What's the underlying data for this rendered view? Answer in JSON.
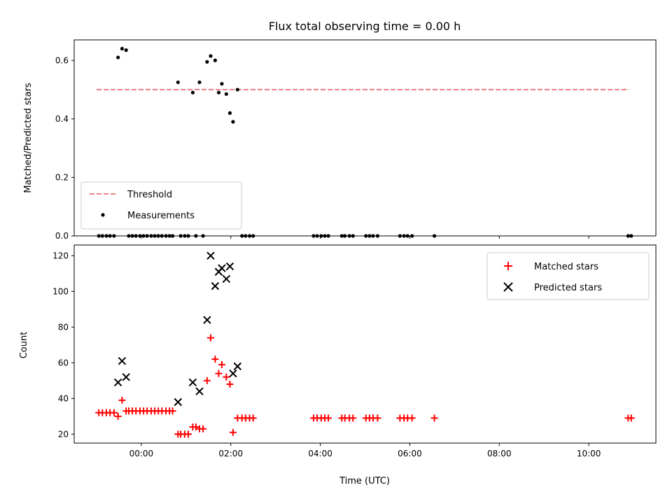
{
  "chart_data": [
    {
      "type": "scatter",
      "title": "Flux total observing time = 0.00 h",
      "xlabel": "",
      "ylabel": "Matched/Predicted stars",
      "xlim": [
        -1.5,
        11.5
      ],
      "ylim": [
        0.0,
        0.67
      ],
      "yticks": [
        0.0,
        0.2,
        0.4,
        0.6
      ],
      "ytick_labels": [
        "0.0",
        "0.2",
        "0.4",
        "0.6"
      ],
      "legend_position": "lower-left",
      "series": [
        {
          "name": "Threshold",
          "kind": "line",
          "style": "dashed",
          "color": "#f08080",
          "x": [
            -1.0,
            10.9
          ],
          "y": [
            0.5,
            0.5
          ]
        },
        {
          "name": "Measurements",
          "kind": "scatter",
          "marker": "dot",
          "color": "#000000",
          "x": [
            -0.52,
            -0.43,
            -0.34,
            0.82,
            1.15,
            1.3,
            1.47,
            1.55,
            1.65,
            1.73,
            1.8,
            1.9,
            1.98,
            2.05,
            2.15,
            -0.95,
            -0.87,
            -0.78,
            -0.7,
            -0.61,
            -0.28,
            -0.2,
            -0.12,
            -0.03,
            0.05,
            0.13,
            0.22,
            0.3,
            0.38,
            0.46,
            0.55,
            0.63,
            0.7,
            0.88,
            0.97,
            1.05,
            1.22,
            1.38,
            2.25,
            2.33,
            2.42,
            2.5,
            3.85,
            3.93,
            4.02,
            4.1,
            4.18,
            4.48,
            4.55,
            4.65,
            4.73,
            5.02,
            5.1,
            5.18,
            5.28,
            5.78,
            5.87,
            5.95,
            6.05,
            6.55,
            10.88,
            10.95
          ],
          "y": [
            0.61,
            0.64,
            0.635,
            0.525,
            0.49,
            0.525,
            0.595,
            0.615,
            0.6,
            0.49,
            0.52,
            0.485,
            0.42,
            0.39,
            0.5,
            0,
            0,
            0,
            0,
            0,
            0,
            0,
            0,
            0,
            0,
            0,
            0,
            0,
            0,
            0,
            0,
            0,
            0,
            0,
            0,
            0,
            0,
            0,
            0,
            0,
            0,
            0,
            0,
            0,
            0,
            0,
            0,
            0,
            0,
            0,
            0,
            0,
            0,
            0,
            0,
            0,
            0,
            0,
            0,
            0,
            0,
            0
          ]
        }
      ]
    },
    {
      "type": "scatter",
      "title": "",
      "xlabel": "Time (UTC)",
      "ylabel": "Count",
      "xlim": [
        -1.5,
        11.5
      ],
      "ylim": [
        15,
        126
      ],
      "xticks": [
        0,
        2,
        4,
        6,
        8,
        10
      ],
      "xtick_labels": [
        "00:00",
        "02:00",
        "04:00",
        "06:00",
        "08:00",
        "10:00"
      ],
      "yticks": [
        20,
        40,
        60,
        80,
        100,
        120
      ],
      "ytick_labels": [
        "20",
        "40",
        "60",
        "80",
        "100",
        "120"
      ],
      "legend_position": "upper-right",
      "series": [
        {
          "name": "Matched stars",
          "kind": "scatter",
          "marker": "plus",
          "color": "#ff0000",
          "x": [
            -0.95,
            -0.87,
            -0.78,
            -0.7,
            -0.61,
            -0.52,
            -0.43,
            -0.34,
            -0.28,
            -0.2,
            -0.12,
            -0.03,
            0.05,
            0.13,
            0.22,
            0.3,
            0.38,
            0.46,
            0.55,
            0.63,
            0.7,
            0.82,
            0.88,
            0.97,
            1.05,
            1.15,
            1.22,
            1.3,
            1.38,
            1.47,
            1.55,
            1.65,
            1.73,
            1.8,
            1.9,
            1.98,
            2.05,
            2.15,
            2.25,
            2.33,
            2.42,
            2.5,
            3.85,
            3.93,
            4.02,
            4.1,
            4.18,
            4.48,
            4.55,
            4.65,
            4.73,
            5.02,
            5.1,
            5.18,
            5.28,
            5.78,
            5.87,
            5.95,
            6.05,
            6.55,
            10.88,
            10.95
          ],
          "y": [
            32,
            32,
            32,
            32,
            32,
            30,
            39,
            33,
            33,
            33,
            33,
            33,
            33,
            33,
            33,
            33,
            33,
            33,
            33,
            33,
            33,
            20,
            20,
            20,
            20,
            24,
            24,
            23,
            23,
            50,
            74,
            62,
            54,
            59,
            52,
            48,
            21,
            29,
            29,
            29,
            29,
            29,
            29,
            29,
            29,
            29,
            29,
            29,
            29,
            29,
            29,
            29,
            29,
            29,
            29,
            29,
            29,
            29,
            29,
            29,
            29,
            29
          ]
        },
        {
          "name": "Predicted stars",
          "kind": "scatter",
          "marker": "x",
          "color": "#000000",
          "x": [
            -0.52,
            -0.43,
            -0.34,
            0.82,
            1.15,
            1.3,
            1.47,
            1.55,
            1.65,
            1.73,
            1.8,
            1.9,
            1.98,
            2.05,
            2.15
          ],
          "y": [
            49,
            61,
            52,
            38,
            49,
            44,
            84,
            120,
            103,
            111,
            113,
            107,
            114,
            54,
            58
          ]
        }
      ]
    }
  ]
}
